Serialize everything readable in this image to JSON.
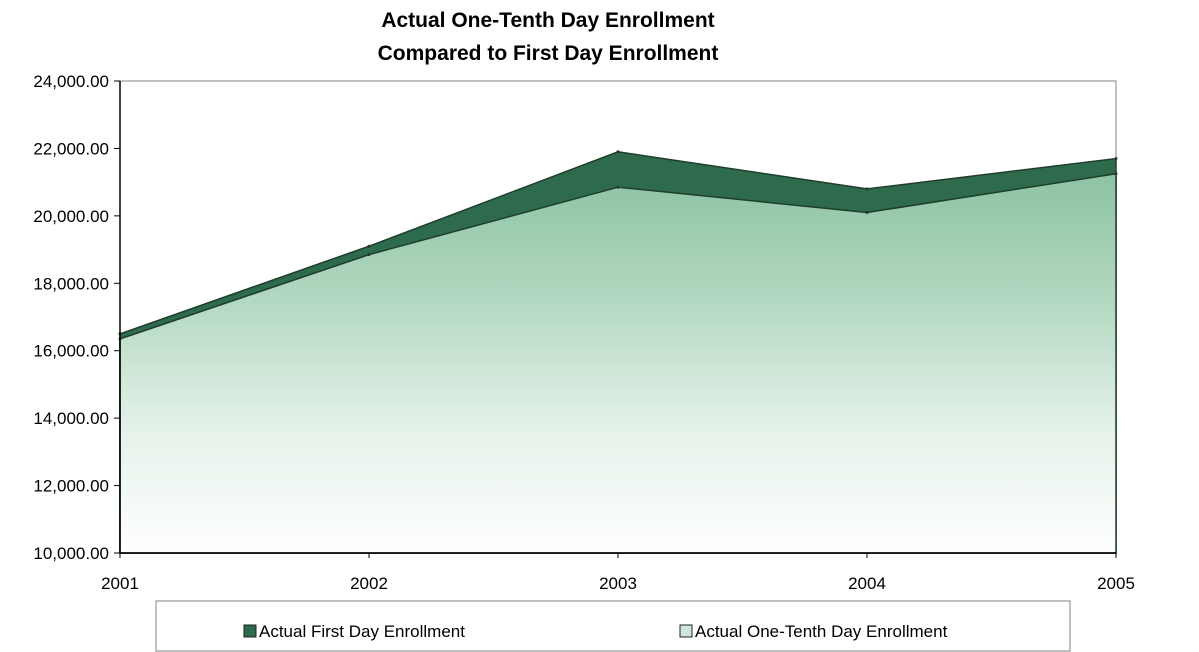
{
  "chart_data": {
    "type": "area",
    "title_lines": [
      "Actual One-Tenth Day Enrollment",
      "Compared to First Day Enrollment"
    ],
    "xlabel": "",
    "ylabel": "",
    "categories": [
      "2001",
      "2002",
      "2003",
      "2004",
      "2005"
    ],
    "ylim": [
      10000,
      24000
    ],
    "yticks": [
      "10,000.00",
      "12,000.00",
      "14,000.00",
      "16,000.00",
      "18,000.00",
      "20,000.00",
      "22,000.00",
      "24,000.00"
    ],
    "grid": false,
    "legend_position": "bottom",
    "series": [
      {
        "name": "Actual First Day Enrollment",
        "values": [
          16500,
          19100,
          21900,
          20800,
          21700
        ],
        "color": "#2e6b4d"
      },
      {
        "name": "Actual One-Tenth Day Enrollment",
        "values": [
          16350,
          18850,
          20850,
          20100,
          21250
        ],
        "color": "#cfe7d8"
      }
    ]
  }
}
